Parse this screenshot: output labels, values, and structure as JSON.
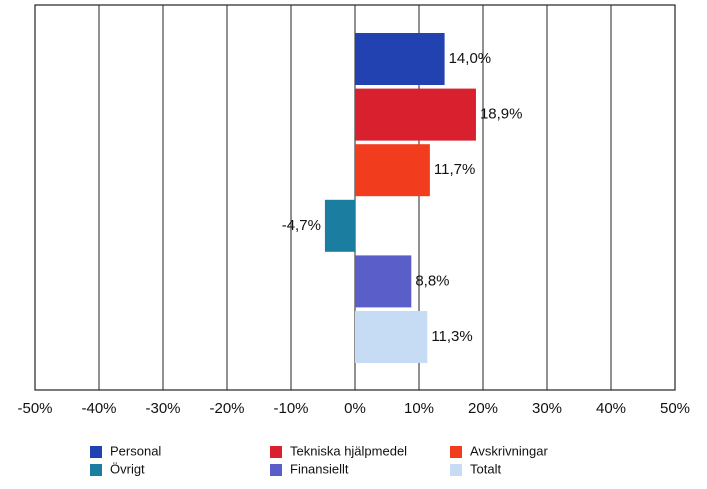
{
  "chart_data": {
    "type": "bar",
    "orientation": "horizontal",
    "series": [
      {
        "name": "Personal",
        "color": "#2142b0",
        "values": [
          14.0
        ],
        "value_labels": [
          "14,0%"
        ]
      },
      {
        "name": "Tekniska hjälpmedel",
        "color": "#d8202e",
        "values": [
          18.9
        ],
        "value_labels": [
          "18,9%"
        ]
      },
      {
        "name": "Avskrivningar",
        "color": "#f23c1e",
        "values": [
          11.7
        ],
        "value_labels": [
          "11,7%"
        ]
      },
      {
        "name": "Övrigt",
        "color": "#1b7ea0",
        "values": [
          -4.7
        ],
        "value_labels": [
          "-4,7%"
        ]
      },
      {
        "name": "Finansiellt",
        "color": "#5a5ec8",
        "values": [
          8.8
        ],
        "value_labels": [
          "8,8%"
        ]
      },
      {
        "name": "Totalt",
        "color": "#c6dcf4",
        "values": [
          11.3
        ],
        "value_labels": [
          "11,3%"
        ]
      }
    ],
    "xlim": [
      -50,
      50
    ],
    "xticks": [
      {
        "value": -50,
        "label": "-50%"
      },
      {
        "value": -40,
        "label": "-40%"
      },
      {
        "value": -30,
        "label": "-30%"
      },
      {
        "value": -20,
        "label": "-20%"
      },
      {
        "value": -10,
        "label": "-10%"
      },
      {
        "value": 0,
        "label": "0%"
      },
      {
        "value": 10,
        "label": "10%"
      },
      {
        "value": 20,
        "label": "20%"
      },
      {
        "value": 30,
        "label": "30%"
      },
      {
        "value": 40,
        "label": "40%"
      },
      {
        "value": 50,
        "label": "50%"
      }
    ],
    "grid": true
  }
}
